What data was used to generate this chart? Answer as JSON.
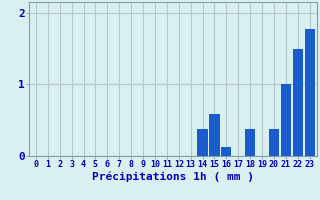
{
  "hours": [
    0,
    1,
    2,
    3,
    4,
    5,
    6,
    7,
    8,
    9,
    10,
    11,
    12,
    13,
    14,
    15,
    16,
    17,
    18,
    19,
    20,
    21,
    22,
    23
  ],
  "values": [
    0,
    0,
    0,
    0,
    0,
    0,
    0,
    0,
    0,
    0,
    0,
    0,
    0,
    0,
    0.38,
    0.58,
    0.13,
    0,
    0.38,
    0,
    0.38,
    1.0,
    1.5,
    1.78
  ],
  "bar_color": "#1a5ccc",
  "background_color": "#d8f0f0",
  "grid_color": "#b8c8cc",
  "axis_color": "#8899aa",
  "text_color": "#0000bb",
  "xlabel": "Précipitations 1h ( mm )",
  "ylim": [
    0,
    2.15
  ],
  "yticks": [
    0,
    1,
    2
  ],
  "label_fontsize": 7,
  "tick_fontsize": 6
}
